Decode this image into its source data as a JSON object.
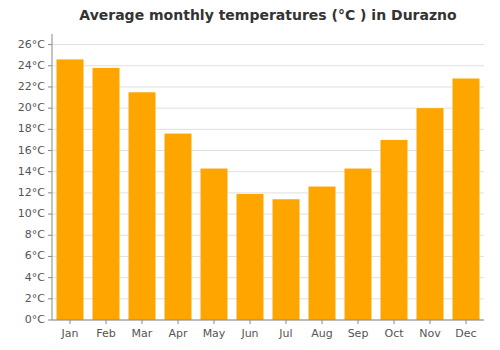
{
  "chart_data": {
    "type": "bar",
    "title": "Average monthly temperatures (°C ) in Durazno",
    "categories": [
      "Jan",
      "Feb",
      "Mar",
      "Apr",
      "May",
      "Jun",
      "Jul",
      "Aug",
      "Sep",
      "Oct",
      "Nov",
      "Dec"
    ],
    "values": [
      24.6,
      23.8,
      21.5,
      17.6,
      14.3,
      11.9,
      11.4,
      12.6,
      14.3,
      17.0,
      20.0,
      22.8
    ],
    "color": "#FFA500",
    "ylim": [
      0,
      27
    ],
    "yticks": [
      {
        "value": 0,
        "label": "0°C"
      },
      {
        "value": 2,
        "label": "2°C"
      },
      {
        "value": 4,
        "label": "4°C"
      },
      {
        "value": 6,
        "label": "6°C"
      },
      {
        "value": 8,
        "label": "8°C"
      },
      {
        "value": 10,
        "label": "10°C"
      },
      {
        "value": 12,
        "label": "12°C"
      },
      {
        "value": 14,
        "label": "14°C"
      },
      {
        "value": 16,
        "label": "16°C"
      },
      {
        "value": 18,
        "label": "18°C"
      },
      {
        "value": 20,
        "label": "20°C"
      },
      {
        "value": 22,
        "label": "22°C"
      },
      {
        "value": 24,
        "label": "24°C"
      },
      {
        "value": 26,
        "label": "26°C"
      }
    ],
    "grid": true
  }
}
